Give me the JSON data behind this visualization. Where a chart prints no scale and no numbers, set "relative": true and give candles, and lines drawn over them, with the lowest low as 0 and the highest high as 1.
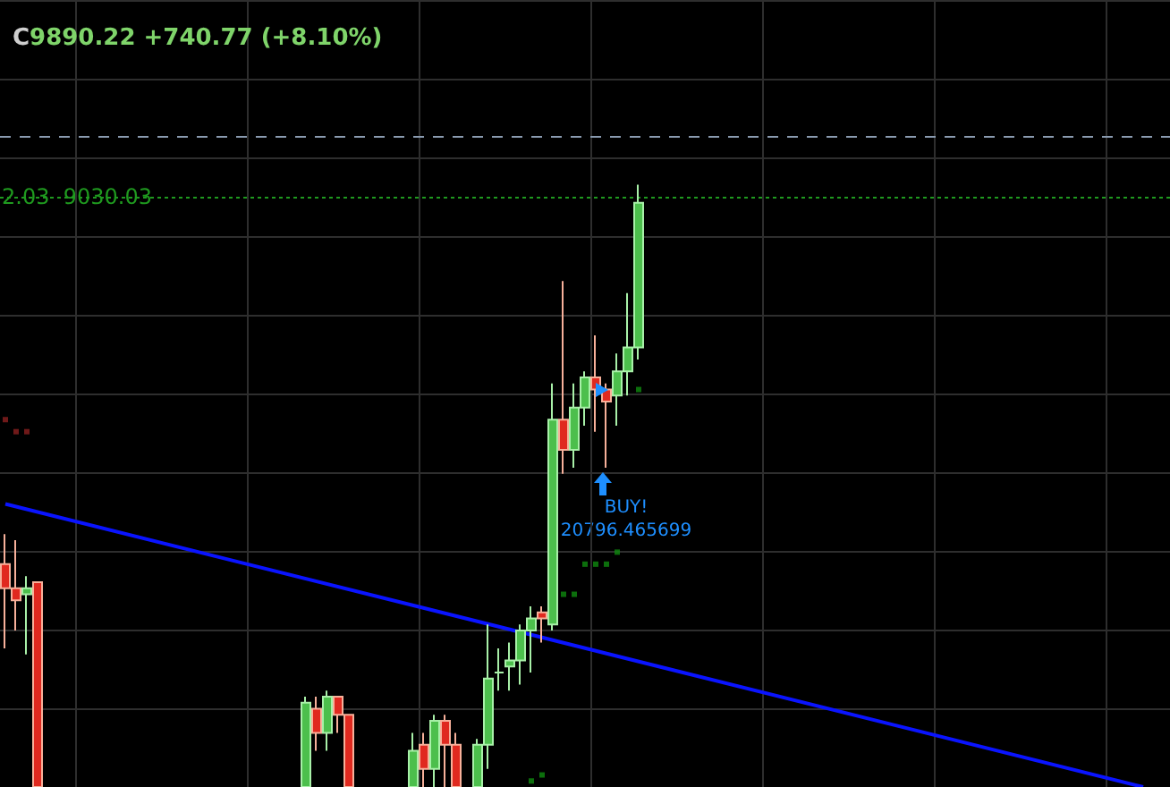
{
  "chart_data": {
    "type": "candlestick",
    "title": "C9890.22 +740.77 (+8.10%)",
    "relative": true,
    "grid": true,
    "tick_labels": false,
    "colors": [
      "#e0291f",
      "#e0291f",
      "#4cbf4c",
      "#e0291f",
      null,
      null,
      null,
      null,
      null,
      null,
      null,
      null,
      null,
      null,
      null,
      null,
      null,
      null,
      null,
      null,
      null,
      null,
      null,
      null,
      null,
      null,
      null,
      null,
      "#4cbf4c",
      "#e0291f",
      "#4cbf4c",
      "#e0291f",
      "#e0291f",
      null,
      null,
      null,
      null,
      null,
      "#4cbf4c",
      "#e0291f",
      "#4cbf4c",
      "#e0291f",
      "#e0291f",
      null,
      "#4cbf4c",
      "#4cbf4c",
      "#a8f0a8",
      "#4cbf4c",
      "#4cbf4c",
      "#4cbf4c",
      "#e0291f",
      "#4cbf4c",
      "#e0291f",
      "#4cbf4c",
      "#4cbf4c",
      "#e0291f",
      "#e0291f",
      "#4cbf4c",
      "#4cbf4c",
      "#4cbf4c",
      null,
      null,
      null,
      null,
      null,
      null,
      null,
      null,
      null,
      null,
      null,
      null,
      null,
      null,
      null,
      null,
      null,
      null,
      null,
      null,
      null,
      null,
      null,
      null,
      null,
      null,
      null,
      null,
      null,
      null,
      null,
      null,
      null,
      null,
      null,
      null,
      null,
      null,
      null,
      null,
      null,
      null,
      null,
      null,
      null,
      null,
      null,
      null,
      null
    ],
    "categories": [
      null,
      null,
      null,
      null,
      null,
      null,
      null,
      null,
      null,
      null,
      null,
      null,
      null,
      null,
      null,
      null,
      null,
      null,
      null,
      null,
      null,
      null,
      null,
      null,
      null,
      null,
      null,
      null,
      null,
      null,
      null,
      null,
      null,
      null,
      null,
      null,
      null,
      null,
      null,
      null,
      null,
      null,
      null,
      null,
      null,
      null,
      null,
      null,
      null,
      null,
      null,
      null,
      null,
      null,
      null,
      null,
      null,
      null,
      null,
      null,
      null,
      null,
      null,
      null,
      null,
      null,
      null,
      null,
      null,
      null,
      null,
      null,
      null,
      null,
      null,
      null,
      null,
      null,
      null,
      null,
      null,
      null,
      null,
      null,
      null,
      null,
      null,
      null,
      null,
      null,
      null,
      null,
      null,
      null,
      null,
      null,
      null,
      null,
      null,
      null,
      null,
      null,
      null,
      null,
      null,
      null,
      null,
      null,
      null
    ],
    "ohlc": [
      [
        0.37,
        0.42,
        0.23,
        0.33
      ],
      [
        0.33,
        0.41,
        0.26,
        0.31
      ],
      [
        0.32,
        0.35,
        0.22,
        0.33
      ],
      [
        0.34,
        0.34,
        0,
        0
      ],
      null,
      null,
      null,
      null,
      null,
      null,
      null,
      null,
      null,
      null,
      null,
      null,
      null,
      null,
      null,
      null,
      null,
      null,
      null,
      null,
      null,
      null,
      null,
      null,
      [
        0,
        0.15,
        0,
        0.14
      ],
      [
        0.13,
        0.15,
        0.06,
        0.09
      ],
      [
        0.09,
        0.16,
        0.06,
        0.15
      ],
      [
        0.15,
        0.15,
        0.09,
        0.12
      ],
      [
        0.12,
        0.12,
        0,
        0
      ],
      null,
      null,
      null,
      null,
      null,
      [
        0,
        0.09,
        0,
        0.06
      ],
      [
        0.07,
        0.09,
        0,
        0.03
      ],
      [
        0.03,
        0.12,
        0,
        0.11
      ],
      [
        0.11,
        0.12,
        0,
        0.07
      ],
      [
        0.07,
        0.09,
        0,
        0
      ],
      null,
      [
        0,
        0.08,
        0,
        0.07
      ],
      [
        0.07,
        0.27,
        0.03,
        0.18
      ],
      [
        0.19,
        0.23,
        0.16,
        0.19
      ],
      [
        0.2,
        0.24,
        0.16,
        0.21
      ],
      [
        0.21,
        0.27,
        0.17,
        0.26
      ],
      [
        0.26,
        0.3,
        0.19,
        0.28
      ],
      [
        0.29,
        0.3,
        0.24,
        0.28
      ],
      [
        0.27,
        0.67,
        0.26,
        0.61
      ],
      [
        0.61,
        0.84,
        0.52,
        0.56
      ],
      [
        0.56,
        0.67,
        0.53,
        0.63
      ],
      [
        0.63,
        0.69,
        0.6,
        0.68
      ],
      [
        0.68,
        0.75,
        0.59,
        0.66
      ],
      [
        0.66,
        0.67,
        0.53,
        0.64
      ],
      [
        0.65,
        0.72,
        0.6,
        0.69
      ],
      [
        0.69,
        0.82,
        0.65,
        0.73
      ],
      [
        0.73,
        1,
        0.71,
        0.97
      ],
      null,
      null,
      null,
      null,
      null,
      null,
      null,
      null,
      null,
      null,
      null,
      null,
      null,
      null,
      null,
      null,
      null,
      null,
      null,
      null,
      null,
      null,
      null,
      null,
      null,
      null,
      null,
      null,
      null,
      null,
      null,
      null,
      null,
      null,
      null,
      null,
      null,
      null,
      null,
      null,
      null,
      null,
      null,
      null,
      null,
      null,
      null,
      null,
      null
    ],
    "series": [
      {
        "type": "line",
        "color": "#0a14ff",
        "marker": "none",
        "values": [
          0.47,
          null,
          null,
          null,
          null,
          null,
          null,
          null,
          null,
          null,
          null,
          null,
          null,
          null,
          null,
          null,
          null,
          null,
          null,
          null,
          null,
          null,
          null,
          null,
          null,
          null,
          null,
          null,
          null,
          null,
          null,
          null,
          null,
          null,
          null,
          null,
          null,
          null,
          null,
          null,
          null,
          null,
          null,
          null,
          null,
          null,
          null,
          null,
          null,
          null,
          null,
          null,
          null,
          null,
          null,
          null,
          null,
          null,
          null,
          null,
          null,
          null,
          null,
          null,
          null,
          null,
          null,
          null,
          null,
          null,
          null,
          null,
          null,
          null,
          null,
          null,
          null,
          null,
          null,
          null,
          null,
          null,
          null,
          null,
          null,
          null,
          null,
          null,
          null,
          null,
          null,
          null,
          null,
          null,
          null,
          null,
          null,
          null,
          null,
          null,
          null,
          null,
          null,
          null,
          null,
          null,
          0,
          null,
          null
        ]
      },
      {
        "type": "scatter",
        "color": "#0f8a0f",
        "marker": "square",
        "values": [
          null,
          null,
          null,
          null,
          null,
          null,
          null,
          null,
          null,
          null,
          null,
          null,
          null,
          null,
          null,
          null,
          null,
          null,
          null,
          null,
          null,
          null,
          null,
          null,
          null,
          null,
          null,
          null,
          null,
          null,
          null,
          null,
          null,
          null,
          null,
          null,
          null,
          null,
          null,
          null,
          null,
          null,
          null,
          null,
          null,
          null,
          null,
          null,
          null,
          0.01,
          0.02,
          null,
          0.32,
          0.32,
          0.37,
          0.37,
          0.37,
          0.39,
          null,
          0.66,
          null,
          null,
          null,
          null,
          null,
          null,
          null,
          null,
          null,
          null,
          null,
          null,
          null,
          null,
          null,
          null,
          null,
          null,
          null,
          null,
          null,
          null,
          null,
          null,
          null,
          null,
          null,
          null,
          null,
          null,
          null,
          null,
          null,
          null,
          null,
          null,
          null,
          null,
          null,
          null,
          null,
          null,
          null,
          null,
          null,
          null,
          null,
          null,
          null
        ]
      },
      {
        "type": "scatter",
        "color": "#8b1f1f",
        "marker": "square",
        "values": [
          0.61,
          0.59,
          0.59,
          null,
          null,
          null,
          null,
          null,
          null,
          null,
          null,
          null,
          null,
          null,
          null,
          null,
          null,
          null,
          null,
          null,
          null,
          null,
          null,
          null,
          null,
          null,
          null,
          null,
          null,
          null,
          null,
          null,
          null,
          null,
          null,
          null,
          null,
          null,
          null,
          null,
          null,
          null,
          null,
          null,
          null,
          null,
          null,
          null,
          null,
          null,
          null,
          null,
          null,
          null,
          null,
          null,
          null,
          null,
          null,
          null,
          null,
          null,
          null,
          null,
          null,
          null,
          null,
          null,
          null,
          null,
          null,
          null,
          null,
          null,
          null,
          null,
          null,
          null,
          null,
          null,
          null,
          null,
          null,
          null,
          null,
          null,
          null,
          null,
          null,
          null,
          null,
          null,
          null,
          null,
          null,
          null,
          null,
          null,
          null,
          null,
          null,
          null,
          null,
          null,
          null,
          null,
          null,
          null,
          null
        ]
      }
    ],
    "ref_lines": [
      {
        "axis": "y",
        "value": 0.98,
        "color": "#1f9a1f",
        "line_style": "dotted"
      },
      {
        "axis": "y",
        "value": 1.08,
        "label": null,
        "color": "#8a9bb0",
        "line_style": "dashed"
      }
    ],
    "annotations": [
      "2.03  9030.03",
      "BUY!",
      "20796.465699"
    ]
  }
}
